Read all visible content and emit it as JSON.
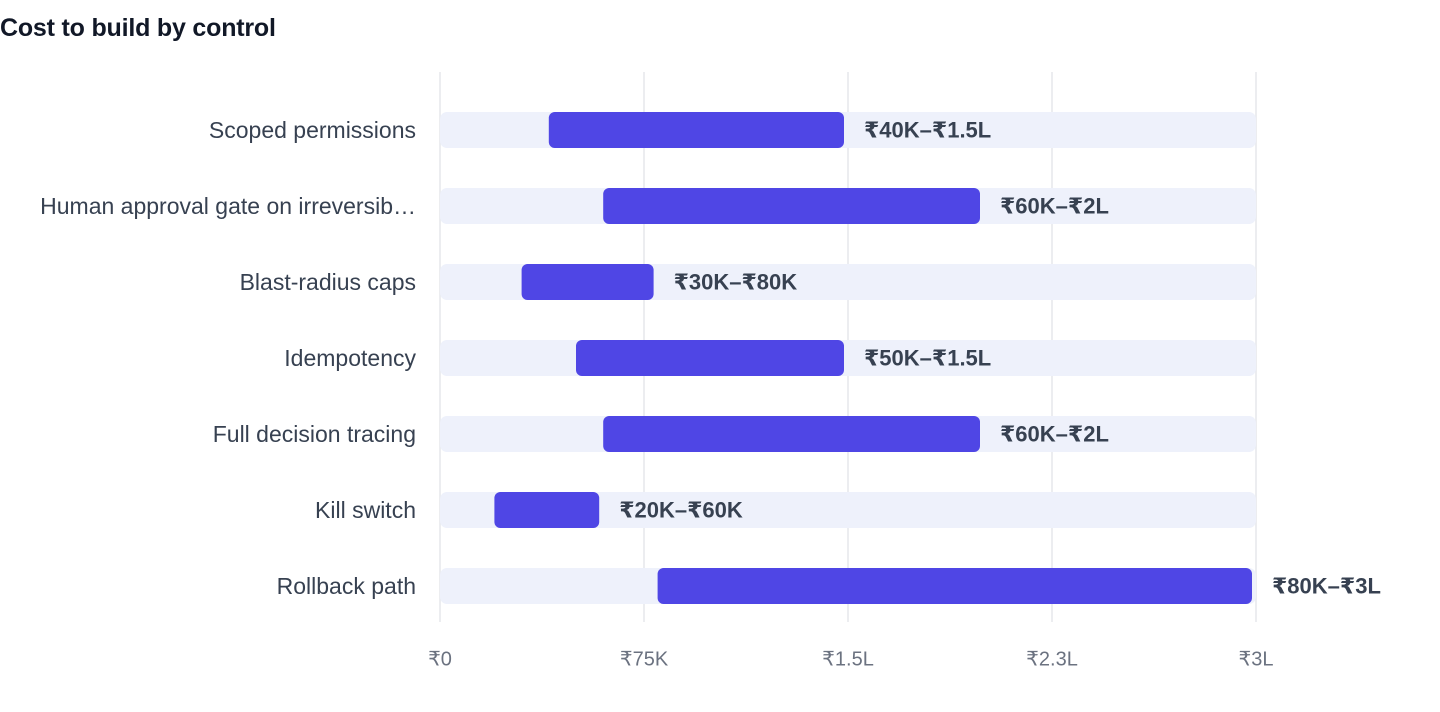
{
  "chart_data": {
    "type": "bar",
    "orientation": "horizontal-range",
    "title": "Cost to build by control",
    "xlabel": "",
    "ylabel": "",
    "xlim": [
      0,
      300000
    ],
    "grid": true,
    "legend": "none",
    "categories": [
      "Scoped permissions",
      "Human approval gate on irreversib…",
      "Blast-radius caps",
      "Idempotency",
      "Full decision tracing",
      "Kill switch",
      "Rollback path"
    ],
    "series": [
      {
        "low": [
          40000,
          60000,
          30000,
          50000,
          60000,
          20000,
          80000
        ],
        "high": [
          150000,
          200000,
          80000,
          150000,
          200000,
          60000,
          300000
        ],
        "labels": [
          "₹40K–₹1.5L",
          "₹60K–₹2L",
          "₹30K–₹80K",
          "₹50K–₹1.5L",
          "₹60K–₹2L",
          "₹20K–₹60K",
          "₹80K–₹3L"
        ]
      }
    ],
    "ticks": [
      {
        "value": 0,
        "label": "₹0"
      },
      {
        "value": 75000,
        "label": "₹75K"
      },
      {
        "value": 150000,
        "label": "₹1.5L"
      },
      {
        "value": 225000,
        "label": "₹2.3L"
      },
      {
        "value": 300000,
        "label": "₹3L"
      }
    ],
    "colors": {
      "bar": "#4f46e5",
      "track": "#eef1fb",
      "grid": "#e5e7eb"
    }
  }
}
